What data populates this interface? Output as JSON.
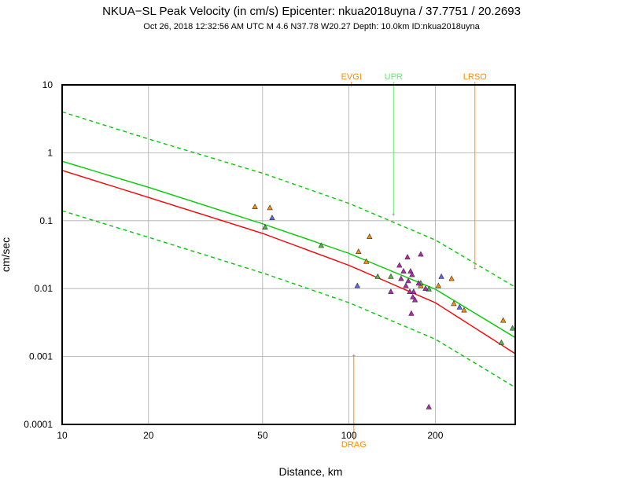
{
  "chart_data": {
    "type": "scatter",
    "title": "NKUA−SL Peak Velocity (in cm/s) Epicenter: nkua2018uyna / 37.7751 / 20.2693",
    "subtitle": "Oct 26, 2018 12:32:56 AM UTC   M 4.6   N37.78 W20.27   Depth: 10.0km   ID:nkua2018uyna",
    "xlabel": "Distance, km",
    "ylabel": "cm/sec",
    "xscale": "log",
    "yscale": "log",
    "xlim": [
      10,
      380
    ],
    "ylim": [
      0.0001,
      10
    ],
    "grid": true,
    "x_ticks": [
      {
        "value": 10,
        "label": "10"
      },
      {
        "value": 20,
        "label": "20"
      },
      {
        "value": 50,
        "label": "50"
      },
      {
        "value": 100,
        "label": "100"
      },
      {
        "value": 200,
        "label": "200"
      }
    ],
    "y_ticks": [
      {
        "value": 10,
        "label": "10"
      },
      {
        "value": 1,
        "label": "1"
      },
      {
        "value": 0.1,
        "label": "0.1"
      },
      {
        "value": 0.01,
        "label": "0.01"
      },
      {
        "value": 0.001,
        "label": "0.001"
      },
      {
        "value": 0.0001,
        "label": "0.0001"
      }
    ],
    "curves": [
      {
        "name": "median",
        "color": "#ff0000",
        "style": "solid",
        "x": [
          10,
          20,
          50,
          100,
          200,
          380
        ],
        "y": [
          0.55,
          0.22,
          0.065,
          0.022,
          0.0062,
          0.0011
        ]
      },
      {
        "name": "median-model",
        "color": "#00cc00",
        "style": "solid",
        "x": [
          10,
          20,
          50,
          100,
          200,
          380
        ],
        "y": [
          0.75,
          0.31,
          0.09,
          0.033,
          0.0098,
          0.0019
        ]
      },
      {
        "name": "upper-bound",
        "color": "#00cc00",
        "style": "dashed",
        "x": [
          10,
          20,
          50,
          100,
          200,
          380
        ],
        "y": [
          4.0,
          1.6,
          0.5,
          0.18,
          0.052,
          0.0105
        ]
      },
      {
        "name": "lower-bound",
        "color": "#00cc00",
        "style": "dashed",
        "x": [
          10,
          20,
          50,
          100,
          200,
          380
        ],
        "y": [
          0.14,
          0.057,
          0.017,
          0.0062,
          0.0018,
          0.00035
        ]
      }
    ],
    "series": [
      {
        "name": "orange",
        "color": "#ff8c00",
        "points": [
          [
            47,
            0.16
          ],
          [
            53,
            0.155
          ],
          [
            108,
            0.035
          ],
          [
            118,
            0.058
          ],
          [
            115,
            0.025
          ],
          [
            178,
            0.011
          ],
          [
            205,
            0.011
          ],
          [
            228,
            0.014
          ],
          [
            232,
            0.006
          ],
          [
            252,
            0.0048
          ],
          [
            345,
            0.0034
          ]
        ]
      },
      {
        "name": "blue",
        "color": "#6060ff",
        "points": [
          [
            54,
            0.11
          ],
          [
            107,
            0.011
          ],
          [
            210,
            0.015
          ],
          [
            243,
            0.0053
          ]
        ]
      },
      {
        "name": "green",
        "color": "#44bb44",
        "points": [
          [
            51,
            0.08
          ],
          [
            80,
            0.043
          ],
          [
            126,
            0.015
          ],
          [
            140,
            0.015
          ],
          [
            178,
            0.012
          ],
          [
            190,
            0.0098
          ],
          [
            340,
            0.0016
          ],
          [
            372,
            0.0026
          ]
        ]
      },
      {
        "name": "purple",
        "color": "#bb22bb",
        "points": [
          [
            140,
            0.009
          ],
          [
            150,
            0.022
          ],
          [
            152,
            0.014
          ],
          [
            155,
            0.018
          ],
          [
            158,
            0.011
          ],
          [
            160,
            0.029
          ],
          [
            161,
            0.013
          ],
          [
            163,
            0.009
          ],
          [
            164,
            0.018
          ],
          [
            165,
            0.0043
          ],
          [
            166,
            0.016
          ],
          [
            167,
            0.0075
          ],
          [
            168,
            0.009
          ],
          [
            170,
            0.0068
          ],
          [
            175,
            0.012
          ],
          [
            178,
            0.032
          ],
          [
            185,
            0.01
          ],
          [
            190,
            0.00018
          ]
        ]
      }
    ],
    "stations": [
      {
        "name": "EVGI",
        "x": 102,
        "y": 18,
        "color": "#ff8c00",
        "label_pos": "top"
      },
      {
        "name": "UPR",
        "x": 143,
        "y": 0.125,
        "color": "#66ee66",
        "label_pos": "top"
      },
      {
        "name": "LRSO",
        "x": 275,
        "y": 0.02,
        "color": "#ff8c00",
        "label_pos": "top"
      },
      {
        "name": "DRAG",
        "x": 104,
        "y": 0.00105,
        "color": "#ff8c00",
        "label_pos": "bottom"
      }
    ]
  }
}
